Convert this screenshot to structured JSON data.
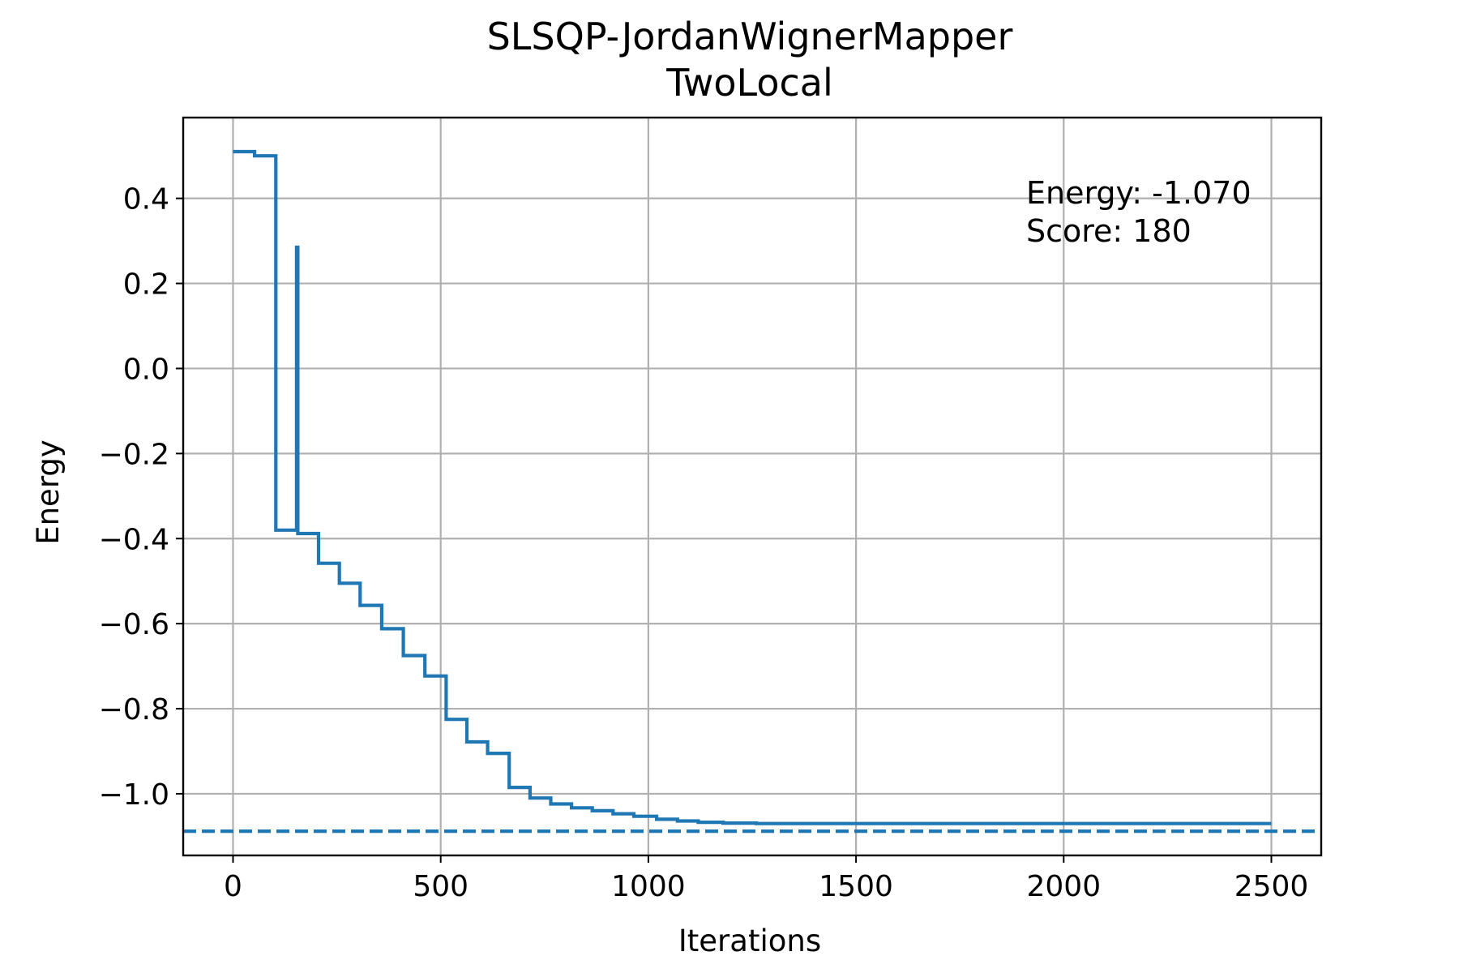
{
  "chart_data": {
    "type": "line",
    "title": [
      "SLSQP-JordanWignerMapper",
      "TwoLocal"
    ],
    "xlabel": "Iterations",
    "ylabel": "Energy",
    "xlim": [
      -120,
      2620
    ],
    "ylim": [
      -1.145,
      0.59
    ],
    "xticks": [
      0,
      500,
      1000,
      1500,
      2000,
      2500
    ],
    "xtick_labels": [
      "0",
      "500",
      "1000",
      "1500",
      "2000",
      "2500"
    ],
    "yticks": [
      0.4,
      0.2,
      0.0,
      -0.2,
      -0.4,
      -0.6,
      -0.8,
      -1.0
    ],
    "ytick_labels": [
      "0.4",
      "0.2",
      "0.0",
      "−0.2",
      "−0.4",
      "−0.6",
      "−0.8",
      "−1.0"
    ],
    "grid": true,
    "series": [
      {
        "color": "#1f77b4",
        "style": "solid",
        "points": [
          [
            0,
            0.51
          ],
          [
            52,
            0.51
          ],
          [
            52,
            0.5
          ],
          [
            103,
            0.5
          ],
          [
            103,
            -0.38
          ],
          [
            153,
            -0.38
          ],
          [
            153,
            0.285
          ],
          [
            156,
            0.285
          ],
          [
            156,
            -0.388
          ],
          [
            206,
            -0.388
          ],
          [
            206,
            -0.458
          ],
          [
            256,
            -0.458
          ],
          [
            256,
            -0.505
          ],
          [
            306,
            -0.505
          ],
          [
            306,
            -0.557
          ],
          [
            358,
            -0.557
          ],
          [
            358,
            -0.612
          ],
          [
            410,
            -0.612
          ],
          [
            410,
            -0.675
          ],
          [
            462,
            -0.675
          ],
          [
            462,
            -0.723
          ],
          [
            513,
            -0.723
          ],
          [
            513,
            -0.825
          ],
          [
            563,
            -0.825
          ],
          [
            563,
            -0.878
          ],
          [
            613,
            -0.878
          ],
          [
            613,
            -0.905
          ],
          [
            665,
            -0.905
          ],
          [
            665,
            -0.985
          ],
          [
            715,
            -0.985
          ],
          [
            715,
            -1.01
          ],
          [
            765,
            -1.01
          ],
          [
            765,
            -1.024
          ],
          [
            815,
            -1.024
          ],
          [
            815,
            -1.033
          ],
          [
            865,
            -1.033
          ],
          [
            865,
            -1.04
          ],
          [
            915,
            -1.04
          ],
          [
            915,
            -1.047
          ],
          [
            965,
            -1.047
          ],
          [
            965,
            -1.053
          ],
          [
            1020,
            -1.053
          ],
          [
            1020,
            -1.06
          ],
          [
            1070,
            -1.06
          ],
          [
            1070,
            -1.064
          ],
          [
            1120,
            -1.064
          ],
          [
            1120,
            -1.067
          ],
          [
            1180,
            -1.067
          ],
          [
            1180,
            -1.069
          ],
          [
            1260,
            -1.069
          ],
          [
            1260,
            -1.07
          ],
          [
            2500,
            -1.07
          ]
        ]
      },
      {
        "color": "#1f77b4",
        "style": "dashed",
        "hline": -1.088
      }
    ],
    "annotation": {
      "lines": [
        "Energy: -1.070",
        "Score: 180"
      ],
      "position": "top-right"
    }
  }
}
